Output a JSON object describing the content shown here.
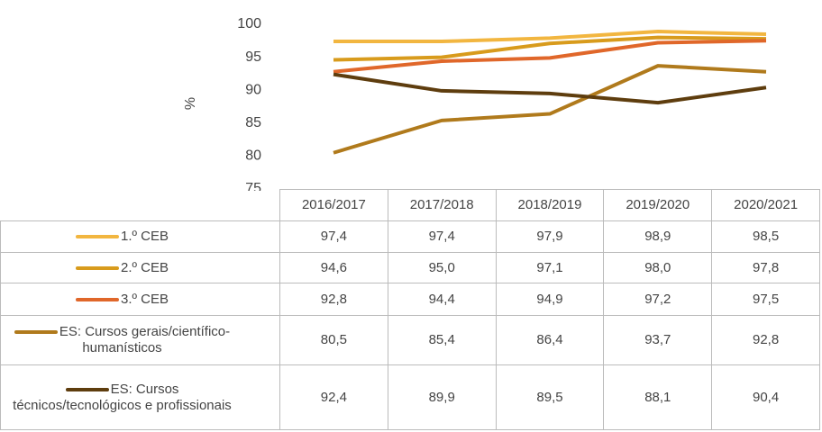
{
  "chart_data": {
    "type": "line",
    "y_label": "%",
    "categories": [
      "2016/2017",
      "2017/2018",
      "2018/2019",
      "2019/2020",
      "2020/2021"
    ],
    "series": [
      {
        "name": "1.º CEB",
        "color": "#f2b640",
        "values": [
          97.4,
          97.4,
          97.9,
          98.9,
          98.5
        ],
        "value_labels": [
          "97,4",
          "97,4",
          "97,9",
          "98,9",
          "98,5"
        ]
      },
      {
        "name": "2.º CEB",
        "color": "#d89b1c",
        "values": [
          94.6,
          95.0,
          97.1,
          98.0,
          97.8
        ],
        "value_labels": [
          "94,6",
          "95,0",
          "97,1",
          "98,0",
          "97,8"
        ]
      },
      {
        "name": "3.º CEB",
        "color": "#e0672a",
        "values": [
          92.8,
          94.4,
          94.9,
          97.2,
          97.5
        ],
        "value_labels": [
          "92,8",
          "94,4",
          "94,9",
          "97,2",
          "97,5"
        ]
      },
      {
        "name": "ES: Cursos gerais/científico-humanísticos",
        "color": "#b07a1c",
        "values": [
          80.5,
          85.4,
          86.4,
          93.7,
          92.8
        ],
        "value_labels": [
          "80,5",
          "85,4",
          "86,4",
          "93,7",
          "92,8"
        ]
      },
      {
        "name": "ES: Cursos técnicos/tecnológicos e profissionais",
        "color": "#5e3d0e",
        "values": [
          92.4,
          89.9,
          89.5,
          88.1,
          90.4
        ],
        "value_labels": [
          "92,4",
          "89,9",
          "89,5",
          "88,1",
          "90,4"
        ]
      }
    ],
    "ylim": [
      75,
      100
    ],
    "yticks": [
      75,
      80,
      85,
      90,
      95,
      100
    ],
    "grid": false
  }
}
